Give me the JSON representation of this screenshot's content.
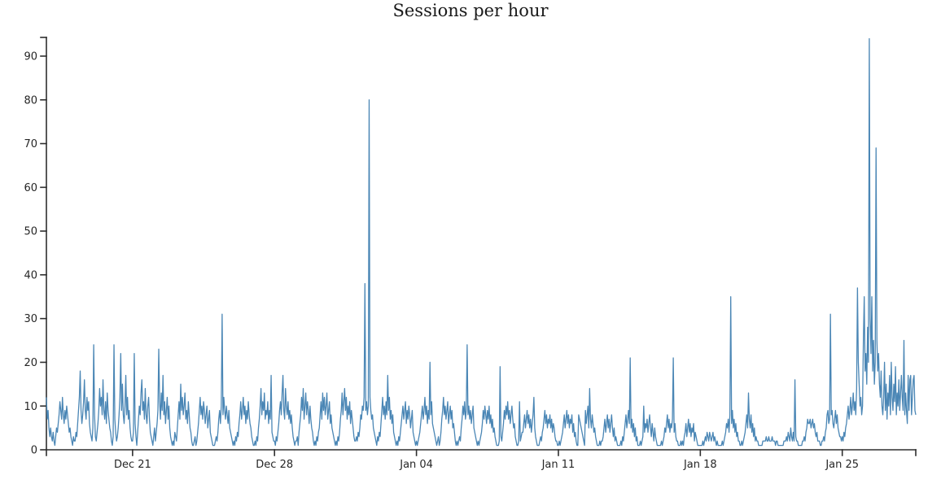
{
  "chart_data": {
    "type": "line",
    "title": "Sessions per hour",
    "xlabel": "",
    "ylabel": "",
    "grid": false,
    "legend": "none",
    "line_color": "#4a86b5",
    "axis_color": "#2e2e2e",
    "label_color": "#262626",
    "ylim": [
      0,
      95
    ],
    "y_ticks": [
      0,
      10,
      20,
      30,
      40,
      50,
      60,
      70,
      80,
      90
    ],
    "x_start": "Dec 16 18:00",
    "x_end": "Jan 28 15:00",
    "freq_hours": 1,
    "x_ticks": [
      {
        "label": "Dec 21",
        "hour_index": 102
      },
      {
        "label": "Dec 28",
        "hour_index": 270
      },
      {
        "label": "Jan 04",
        "hour_index": 438
      },
      {
        "label": "Jan 11",
        "hour_index": 606
      },
      {
        "label": "Jan 18",
        "hour_index": 774
      },
      {
        "label": "Jan 25",
        "hour_index": 942
      }
    ],
    "notable_peaks": [
      {
        "time": "Dec 19",
        "value": 24
      },
      {
        "time": "Dec 20",
        "value": 24
      },
      {
        "time": "Dec 25",
        "value": 31
      },
      {
        "time": "Jan 01",
        "value": 38
      },
      {
        "time": "Jan 01",
        "value": 80
      },
      {
        "time": "Jan 06",
        "value": 24
      },
      {
        "time": "Jan 08",
        "value": 19
      },
      {
        "time": "Jan 14",
        "value": 21
      },
      {
        "time": "Jan 16",
        "value": 21
      },
      {
        "time": "Jan 19",
        "value": 35
      },
      {
        "time": "Jan 24",
        "value": 31
      },
      {
        "time": "Jan 25",
        "value": 37
      },
      {
        "time": "Jan 26",
        "value": 94
      },
      {
        "time": "Jan 26",
        "value": 69
      }
    ],
    "series": [
      {
        "name": "sessions",
        "values": [
          12,
          7,
          9,
          5,
          3,
          5,
          3,
          2,
          4,
          2,
          1,
          3,
          5,
          4,
          6,
          8,
          11,
          9,
          7,
          12,
          8,
          6,
          9,
          7,
          10,
          8,
          6,
          4,
          5,
          3,
          2,
          1,
          3,
          2,
          2,
          4,
          3,
          6,
          9,
          12,
          18,
          9,
          6,
          8,
          11,
          16,
          9,
          7,
          12,
          9,
          11,
          6,
          4,
          3,
          2,
          5,
          24,
          8,
          3,
          2,
          4,
          6,
          9,
          14,
          10,
          12,
          8,
          16,
          9,
          7,
          11,
          6,
          13,
          9,
          7,
          5,
          4,
          2,
          1,
          3,
          24,
          7,
          4,
          2,
          3,
          5,
          8,
          12,
          22,
          9,
          15,
          8,
          6,
          10,
          17,
          8,
          12,
          7,
          9,
          5,
          3,
          2,
          2,
          4,
          22,
          6,
          3,
          1,
          4,
          7,
          10,
          8,
          13,
          16,
          9,
          11,
          7,
          14,
          8,
          6,
          10,
          12,
          7,
          4,
          3,
          2,
          1,
          3,
          5,
          2,
          4,
          6,
          9,
          23,
          11,
          7,
          13,
          9,
          17,
          8,
          11,
          6,
          9,
          12,
          7,
          10,
          5,
          3,
          2,
          1,
          2,
          1,
          4,
          3,
          2,
          5,
          8,
          11,
          7,
          15,
          9,
          12,
          8,
          10,
          13,
          7,
          9,
          6,
          11,
          8,
          5,
          4,
          2,
          1,
          1,
          2,
          3,
          1,
          2,
          4,
          6,
          9,
          12,
          8,
          10,
          7,
          11,
          9,
          6,
          8,
          10,
          5,
          7,
          9,
          4,
          3,
          2,
          1,
          1,
          1,
          2,
          3,
          2,
          4,
          7,
          9,
          6,
          10,
          31,
          8,
          12,
          9,
          7,
          10,
          8,
          6,
          9,
          5,
          4,
          3,
          2,
          1,
          2,
          1,
          3,
          2,
          4,
          3,
          6,
          8,
          11,
          7,
          9,
          12,
          8,
          10,
          6,
          9,
          7,
          11,
          8,
          6,
          5,
          3,
          2,
          1,
          1,
          2,
          1,
          3,
          2,
          5,
          7,
          10,
          14,
          8,
          11,
          9,
          13,
          7,
          9,
          8,
          11,
          6,
          9,
          7,
          17,
          4,
          3,
          2,
          2,
          1,
          3,
          2,
          4,
          6,
          9,
          11,
          8,
          13,
          17,
          9,
          7,
          14,
          10,
          8,
          11,
          7,
          9,
          6,
          8,
          5,
          3,
          2,
          1,
          2,
          2,
          3,
          1,
          4,
          6,
          8,
          12,
          9,
          14,
          7,
          10,
          13,
          8,
          11,
          9,
          6,
          10,
          7,
          5,
          4,
          2,
          1,
          2,
          1,
          3,
          2,
          4,
          5,
          8,
          11,
          7,
          13,
          9,
          12,
          8,
          10,
          13,
          7,
          9,
          11,
          6,
          8,
          5,
          4,
          3,
          2,
          1,
          2,
          1,
          3,
          2,
          4,
          7,
          9,
          13,
          8,
          11,
          14,
          9,
          12,
          7,
          10,
          8,
          11,
          6,
          9,
          7,
          5,
          3,
          2,
          2,
          3,
          2,
          4,
          3,
          5,
          8,
          7,
          10,
          9,
          12,
          38,
          9,
          11,
          8,
          10,
          80,
          12,
          9,
          7,
          8,
          5,
          4,
          3,
          2,
          1,
          3,
          2,
          4,
          3,
          6,
          9,
          12,
          8,
          10,
          7,
          11,
          8,
          17,
          9,
          12,
          7,
          9,
          6,
          8,
          4,
          3,
          2,
          1,
          2,
          1,
          3,
          2,
          4,
          6,
          8,
          10,
          7,
          9,
          11,
          6,
          9,
          7,
          10,
          8,
          5,
          7,
          9,
          4,
          3,
          2,
          1,
          2,
          1,
          2,
          3,
          4,
          6,
          8,
          10,
          7,
          9,
          12,
          8,
          10,
          6,
          9,
          7,
          20,
          8,
          11,
          6,
          5,
          4,
          3,
          2,
          1,
          2,
          3,
          1,
          2,
          4,
          7,
          9,
          12,
          8,
          10,
          7,
          9,
          11,
          6,
          8,
          10,
          7,
          9,
          5,
          6,
          4,
          2,
          1,
          2,
          1,
          2,
          3,
          2,
          5,
          7,
          10,
          8,
          11,
          7,
          9,
          24,
          8,
          10,
          7,
          9,
          6,
          8,
          10,
          5,
          4,
          3,
          2,
          1,
          2,
          1,
          2,
          3,
          4,
          6,
          9,
          7,
          10,
          8,
          6,
          9,
          7,
          10,
          6,
          8,
          5,
          7,
          4,
          5,
          3,
          2,
          1,
          1,
          1,
          2,
          19,
          3,
          2,
          4,
          6,
          9,
          7,
          10,
          8,
          11,
          7,
          9,
          6,
          8,
          10,
          7,
          5,
          6,
          3,
          2,
          1,
          1,
          2,
          11,
          2,
          3,
          4,
          4,
          6,
          8,
          5,
          7,
          9,
          6,
          8,
          5,
          7,
          4,
          6,
          8,
          12,
          5,
          3,
          2,
          1,
          1,
          1,
          2,
          3,
          2,
          4,
          5,
          7,
          9,
          6,
          8,
          5,
          7,
          6,
          8,
          5,
          7,
          4,
          6,
          5,
          3,
          2,
          2,
          1,
          1,
          2,
          1,
          2,
          3,
          4,
          6,
          8,
          5,
          7,
          9,
          6,
          8,
          5,
          7,
          6,
          8,
          4,
          6,
          3,
          4,
          2,
          1,
          1,
          8,
          7,
          6,
          5,
          4,
          3,
          2,
          1,
          9,
          6,
          8,
          10,
          5,
          14,
          7,
          5,
          8,
          6,
          4,
          5,
          3,
          2,
          1,
          1,
          1,
          2,
          1,
          2,
          2,
          3,
          5,
          7,
          4,
          6,
          8,
          5,
          7,
          4,
          6,
          8,
          5,
          3,
          5,
          2,
          3,
          2,
          1,
          1,
          1,
          1,
          2,
          1,
          3,
          2,
          4,
          6,
          8,
          5,
          7,
          9,
          6,
          21,
          5,
          7,
          4,
          6,
          3,
          5,
          2,
          3,
          1,
          1,
          1,
          2,
          1,
          2,
          3,
          10,
          4,
          6,
          5,
          7,
          4,
          6,
          8,
          5,
          3,
          6,
          4,
          2,
          5,
          3,
          2,
          1,
          1,
          1,
          1,
          1,
          2,
          1,
          2,
          3,
          5,
          4,
          6,
          8,
          5,
          7,
          4,
          6,
          5,
          7,
          21,
          4,
          6,
          3,
          2,
          2,
          1,
          1,
          1,
          2,
          1,
          2,
          1,
          3,
          4,
          6,
          3,
          5,
          7,
          4,
          6,
          3,
          5,
          4,
          6,
          2,
          4,
          3,
          2,
          1,
          1,
          1,
          1,
          1,
          1,
          2,
          1,
          2,
          3,
          2,
          4,
          3,
          2,
          4,
          3,
          2,
          3,
          4,
          2,
          3,
          2,
          1,
          2,
          1,
          1,
          1,
          1,
          1,
          2,
          1,
          2,
          3,
          4,
          6,
          5,
          7,
          4,
          8,
          35,
          6,
          9,
          5,
          7,
          4,
          6,
          3,
          4,
          2,
          2,
          1,
          1,
          2,
          1,
          2,
          3,
          4,
          6,
          8,
          5,
          13,
          7,
          5,
          8,
          4,
          6,
          3,
          5,
          2,
          3,
          2,
          2,
          1,
          1,
          1,
          1,
          1,
          2,
          2,
          2,
          2,
          3,
          2,
          2,
          3,
          2,
          2,
          2,
          3,
          2,
          2,
          2,
          1,
          2,
          2,
          1,
          1,
          1,
          1,
          1,
          1,
          1,
          2,
          2,
          2,
          3,
          2,
          4,
          3,
          2,
          5,
          3,
          2,
          4,
          2,
          16,
          3,
          2,
          2,
          1,
          1,
          1,
          1,
          1,
          2,
          2,
          3,
          2,
          4,
          5,
          7,
          6,
          6,
          7,
          5,
          6,
          7,
          5,
          6,
          4,
          3,
          4,
          2,
          2,
          2,
          1,
          1,
          2,
          2,
          3,
          2,
          4,
          5,
          8,
          9,
          6,
          7,
          31,
          8,
          9,
          6,
          5,
          7,
          9,
          6,
          8,
          5,
          4,
          3,
          3,
          2,
          3,
          2,
          4,
          3,
          5,
          6,
          8,
          10,
          7,
          9,
          12,
          8,
          10,
          13,
          9,
          11,
          8,
          14,
          37,
          20,
          15,
          10,
          12,
          8,
          10,
          25,
          35,
          18,
          22,
          15,
          28,
          20,
          94,
          30,
          22,
          35,
          18,
          25,
          15,
          20,
          69,
          25,
          18,
          22,
          15,
          12,
          18,
          10,
          8,
          12,
          20,
          9,
          15,
          7,
          13,
          10,
          17,
          8,
          20,
          12,
          9,
          15,
          11,
          19,
          8,
          13,
          10,
          16,
          9,
          13,
          17,
          12,
          9,
          25,
          8,
          13,
          9,
          6,
          17,
          9,
          16,
          17,
          8,
          12,
          16,
          17,
          9,
          8
        ]
      }
    ]
  }
}
